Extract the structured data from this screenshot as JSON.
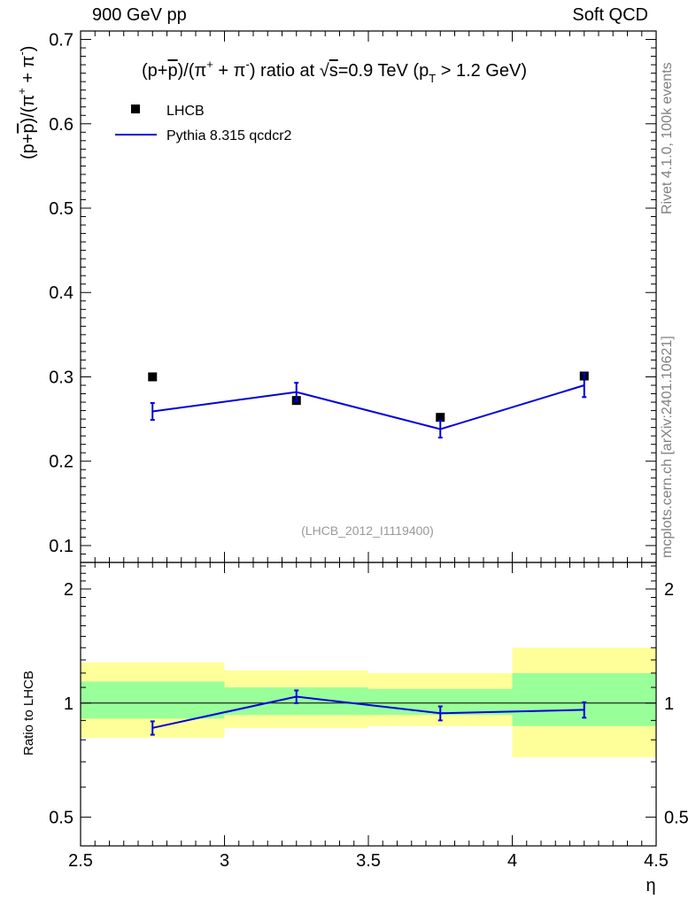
{
  "header": {
    "left": "900 GeV pp",
    "right": "Soft QCD"
  },
  "side": {
    "rivet": "Rivet 4.1.0,  100k events",
    "mcplots": "mcplots.cern.ch [arXiv:2401.10621]"
  },
  "colors": {
    "data": "#000000",
    "mc": "#0000dd",
    "band_inner": "#99ff99",
    "band_outer": "#ffff99",
    "watermark": "#999999"
  },
  "chart_data": [
    {
      "type": "scatter",
      "title": "(p+p̄)/(π⁺ + π⁻) ratio at √s=0.9 TeV (pT > 1.2 GeV)",
      "ylabel": "(p+p̄)/(π⁺ + π⁻)",
      "xlabel": "η",
      "xlim": [
        2.5,
        4.5
      ],
      "ylim": [
        0.08,
        0.71
      ],
      "yticks": [
        0.1,
        0.2,
        0.3,
        0.4,
        0.5,
        0.6,
        0.7
      ],
      "ytick_labels": [
        "0.1",
        "0.2",
        "0.3",
        "0.4",
        "0.5",
        "0.6",
        "0.7"
      ],
      "legend": {
        "placement": "top-left",
        "entries": [
          "LHCB",
          "Pythia 8.315 qcdcr2"
        ]
      },
      "watermark": "(LHCB_2012_I1119400)",
      "series": [
        {
          "name": "LHCB",
          "style": "markers",
          "x": [
            2.75,
            3.25,
            3.75,
            4.25
          ],
          "xerr": [
            0.25,
            0.25,
            0.25,
            0.25
          ],
          "y": [
            0.3,
            0.272,
            0.252,
            0.301
          ]
        },
        {
          "name": "Pythia 8.315 qcdcr2",
          "style": "line",
          "x": [
            2.75,
            3.25,
            3.75,
            4.25
          ],
          "y": [
            0.259,
            0.282,
            0.238,
            0.29
          ],
          "yerr": [
            0.01,
            0.011,
            0.01,
            0.014
          ]
        }
      ]
    },
    {
      "type": "line",
      "ylabel": "Ratio to LHCB",
      "xlabel": "η",
      "xlim": [
        2.5,
        4.5
      ],
      "ylim": [
        0.42,
        2.35
      ],
      "yscale": "log",
      "yticks": [
        0.5,
        1,
        2
      ],
      "ytick_labels": [
        "0.5",
        "1",
        "2"
      ],
      "xticks": [
        2.5,
        3,
        3.5,
        4,
        4.5
      ],
      "xtick_labels": [
        "2.5",
        "3",
        "3.5",
        "4",
        "4.5"
      ],
      "reference": 1,
      "bands": [
        {
          "x0": 2.5,
          "x1": 3.0,
          "inner": [
            0.91,
            1.14
          ],
          "outer": [
            0.81,
            1.28
          ]
        },
        {
          "x0": 3.0,
          "x1": 3.5,
          "inner": [
            0.93,
            1.1
          ],
          "outer": [
            0.86,
            1.22
          ]
        },
        {
          "x0": 3.5,
          "x1": 4.0,
          "inner": [
            0.93,
            1.09
          ],
          "outer": [
            0.87,
            1.2
          ]
        },
        {
          "x0": 4.0,
          "x1": 4.5,
          "inner": [
            0.87,
            1.2
          ],
          "outer": [
            0.72,
            1.4
          ]
        }
      ],
      "series": [
        {
          "name": "Pythia 8.315 qcdcr2 / LHCB",
          "x": [
            2.75,
            3.25,
            3.75,
            4.25
          ],
          "y": [
            0.86,
            1.04,
            0.94,
            0.96
          ],
          "yerr": [
            0.035,
            0.04,
            0.04,
            0.045
          ]
        }
      ]
    }
  ]
}
